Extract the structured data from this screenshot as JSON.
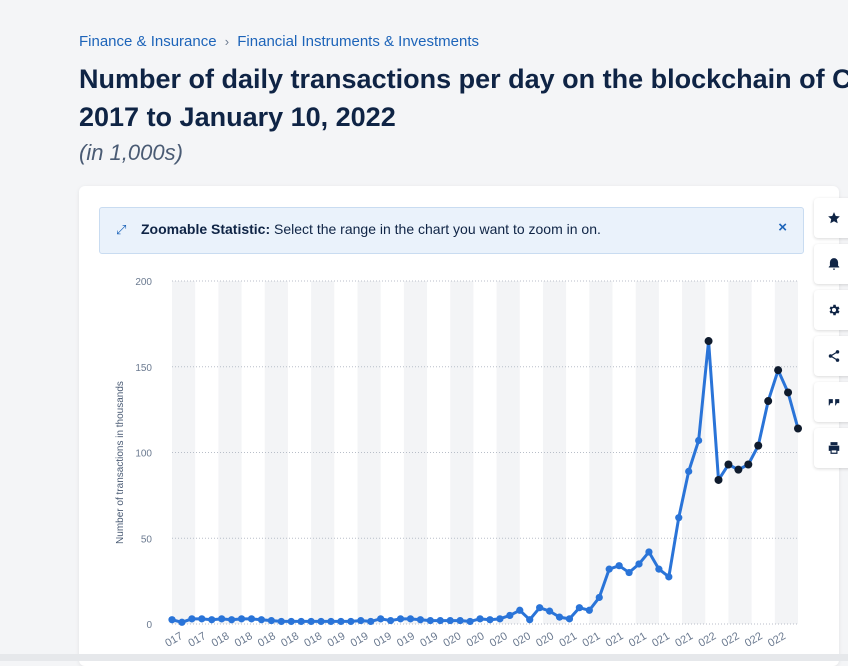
{
  "breadcrumb": {
    "category": "Finance & Insurance",
    "separator": "›",
    "subcategory": "Financial Instruments & Investments"
  },
  "title": {
    "line1": "Number of daily transactions per day on the blockchain of C",
    "line2": "2017 to January 10, 2022"
  },
  "subtitle": "(in 1,000s)",
  "banner": {
    "label": "Zoomable Statistic:",
    "text": " Select the range in the chart you want to zoom in on.",
    "close": "×"
  },
  "toolbar_icons": [
    "star-icon",
    "bell-icon",
    "gear-icon",
    "share-icon",
    "quote-icon",
    "print-icon"
  ],
  "colors": {
    "line": "#2a74d8",
    "marker_dark": "#0f1b2d",
    "accent": "#1d64b9"
  },
  "chart_data": {
    "type": "line",
    "ylabel": "Number of transactions in thousands",
    "ylim": [
      0,
      200
    ],
    "yticks": [
      0,
      50,
      100,
      150,
      200
    ],
    "xtick_labels": [
      "017",
      "017",
      "018",
      "018",
      "018",
      "018",
      "018",
      "019",
      "019",
      "019",
      "019",
      "019",
      "020",
      "020",
      "020",
      "020",
      "020",
      "021",
      "021",
      "021",
      "021",
      "021",
      "021",
      "022",
      "022",
      "022",
      "022"
    ],
    "series": [
      {
        "values": [
          2.5,
          1,
          3,
          3,
          2.5,
          3,
          2.5,
          3,
          3,
          2.5,
          2,
          1.5,
          1.5,
          1.5,
          1.5,
          1.5,
          1.5,
          1.5,
          1.5,
          2,
          1.5,
          3,
          2,
          3,
          3,
          2.5,
          2,
          2,
          2,
          2,
          1.5,
          3,
          2.5,
          3,
          5,
          8,
          2.5,
          9.5,
          7.5,
          4,
          3,
          9.5,
          8,
          15.5,
          32,
          34,
          30,
          35,
          42,
          32,
          27.5,
          62,
          89,
          107,
          165,
          84,
          93,
          90,
          93,
          104,
          130,
          148,
          135,
          114
        ],
        "dark_marker_from_index": 54
      }
    ]
  }
}
